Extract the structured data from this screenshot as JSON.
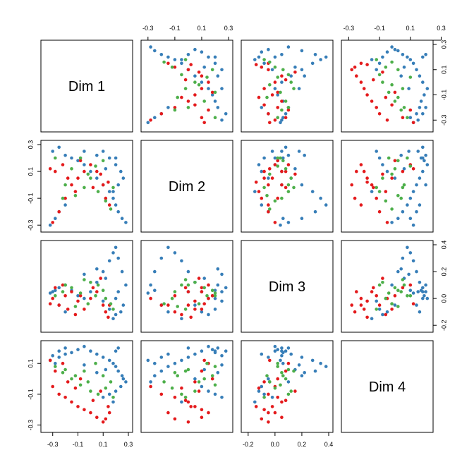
{
  "chart_data": {
    "type": "scatter",
    "layout": "scatterplot-matrix",
    "dimensions": [
      "Dim 1",
      "Dim 2",
      "Dim 3",
      "Dim 4"
    ],
    "ranges": {
      "Dim 1": [
        -0.36,
        0.3
      ],
      "Dim 2": [
        -0.32,
        0.3
      ],
      "Dim 3": [
        -0.22,
        0.4
      ],
      "Dim 4": [
        -0.32,
        0.22
      ]
    },
    "ticks": {
      "Dim 1": [
        "-0.3",
        "-0.1",
        "0.1",
        "0.3"
      ],
      "Dim 2": [
        "-0.3",
        "-0.1",
        "0.1",
        "0.3"
      ],
      "Dim 3": [
        "-0.2",
        "0.0",
        "0.2",
        "0.4"
      ],
      "Dim 4": [
        "-0.3",
        "-0.1",
        "0.1",
        "0.3"
      ]
    },
    "tick_values": {
      "Dim 1": [
        -0.3,
        -0.1,
        0.1,
        0.3
      ],
      "Dim 2": [
        -0.3,
        -0.1,
        0.1,
        0.3
      ],
      "Dim 3": [
        -0.2,
        0.0,
        0.2,
        0.4
      ],
      "Dim 4": [
        -0.3,
        -0.1,
        0.1,
        0.3
      ]
    },
    "groups": [
      {
        "color": "#377eb8",
        "points": [
          [
            -0.3,
            0.25,
            0.05,
            0.15
          ],
          [
            -0.25,
            0.28,
            0.08,
            0.18
          ],
          [
            -0.2,
            0.22,
            0.1,
            0.2
          ],
          [
            -0.15,
            0.2,
            0.06,
            0.17
          ],
          [
            -0.1,
            0.18,
            0.02,
            0.19
          ],
          [
            -0.05,
            0.15,
            0.0,
            0.21
          ],
          [
            0.0,
            0.1,
            0.05,
            0.18
          ],
          [
            0.05,
            0.05,
            0.12,
            0.16
          ],
          [
            0.1,
            0.0,
            0.2,
            0.14
          ],
          [
            0.15,
            -0.05,
            0.28,
            0.12
          ],
          [
            0.18,
            -0.1,
            0.34,
            0.1
          ],
          [
            0.2,
            -0.15,
            0.38,
            0.08
          ],
          [
            0.22,
            -0.2,
            0.3,
            0.05
          ],
          [
            0.25,
            -0.25,
            0.2,
            0.02
          ],
          [
            0.28,
            -0.28,
            0.1,
            -0.02
          ],
          [
            0.26,
            0.05,
            -0.05,
            0.0
          ],
          [
            0.24,
            0.1,
            -0.1,
            -0.05
          ],
          [
            0.2,
            0.15,
            -0.12,
            -0.08
          ],
          [
            0.15,
            0.2,
            -0.08,
            -0.1
          ],
          [
            0.1,
            0.25,
            -0.02,
            -0.12
          ],
          [
            -0.32,
            -0.3,
            0.04,
            0.12
          ],
          [
            -0.28,
            -0.25,
            0.06,
            0.1
          ],
          [
            -0.25,
            -0.2,
            -0.05,
            0.14
          ],
          [
            -0.2,
            -0.15,
            -0.1,
            0.16
          ],
          [
            0.2,
            0.2,
            0.0,
            0.18
          ],
          [
            0.22,
            0.0,
            0.05,
            0.2
          ],
          [
            0.18,
            -0.05,
            -0.15,
            -0.15
          ],
          [
            0.12,
            0.12,
            0.15,
            0.06
          ],
          [
            0.05,
            0.22,
            0.22,
            0.04
          ],
          [
            -0.05,
            0.25,
            0.18,
            0.09
          ]
        ]
      },
      {
        "color": "#e41a1c",
        "points": [
          [
            -0.3,
            -0.28,
            0.0,
            -0.05
          ],
          [
            -0.25,
            -0.2,
            -0.05,
            -0.1
          ],
          [
            -0.2,
            -0.1,
            0.02,
            -0.12
          ],
          [
            -0.15,
            0.0,
            0.05,
            -0.15
          ],
          [
            -0.1,
            0.05,
            -0.02,
            -0.18
          ],
          [
            -0.05,
            0.1,
            -0.08,
            -0.2
          ],
          [
            0.0,
            0.15,
            0.0,
            -0.22
          ],
          [
            0.05,
            0.1,
            0.05,
            -0.25
          ],
          [
            0.1,
            0.0,
            -0.05,
            -0.28
          ],
          [
            0.12,
            -0.1,
            -0.1,
            -0.26
          ],
          [
            0.15,
            -0.15,
            -0.05,
            -0.22
          ],
          [
            -0.28,
            0.1,
            0.08,
            0.05
          ],
          [
            -0.22,
            0.15,
            0.1,
            0.1
          ],
          [
            -0.18,
            0.05,
            -0.08,
            -0.02
          ],
          [
            -0.12,
            -0.05,
            -0.12,
            -0.06
          ],
          [
            0.02,
            -0.02,
            0.08,
            -0.14
          ],
          [
            0.08,
            0.08,
            0.15,
            -0.08
          ],
          [
            -0.08,
            0.18,
            0.02,
            0.0
          ],
          [
            0.14,
            0.02,
            -0.14,
            -0.18
          ],
          [
            -0.32,
            0.12,
            -0.04,
            0.12
          ]
        ]
      },
      {
        "color": "#4daf4a",
        "points": [
          [
            -0.28,
            0.2,
            0.02,
            0.08
          ],
          [
            -0.22,
            -0.1,
            0.05,
            0.04
          ],
          [
            -0.15,
            0.12,
            0.08,
            0.0
          ],
          [
            -0.08,
            0.2,
            0.04,
            -0.04
          ],
          [
            0.0,
            0.05,
            0.12,
            -0.08
          ],
          [
            0.06,
            -0.05,
            0.1,
            -0.1
          ],
          [
            0.12,
            -0.12,
            0.0,
            -0.06
          ],
          [
            0.16,
            -0.18,
            -0.04,
            -0.02
          ],
          [
            -0.05,
            -0.02,
            0.14,
            0.05
          ],
          [
            0.04,
            0.14,
            0.02,
            0.1
          ],
          [
            -0.12,
            -0.08,
            -0.06,
            0.02
          ],
          [
            0.1,
            0.18,
            0.06,
            0.02
          ],
          [
            -0.2,
            0.0,
            0.1,
            0.06
          ],
          [
            0.18,
            -0.02,
            -0.08,
            -0.12
          ],
          [
            -0.02,
            0.08,
            -0.04,
            -0.02
          ]
        ]
      }
    ]
  }
}
